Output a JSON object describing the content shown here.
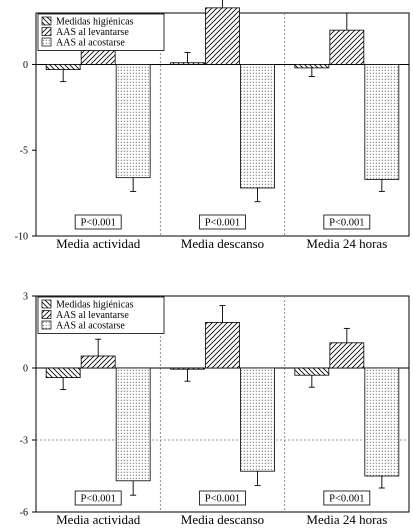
{
  "chart_data": [
    {
      "type": "bar",
      "title": "",
      "xlabel": "",
      "ylabel": "",
      "ylim": [
        -10,
        3
      ],
      "yticks": [
        -10,
        -5,
        0
      ],
      "grid": false,
      "legend_position": "top-left",
      "categories": [
        "Media actividad",
        "Media descanso",
        "Media 24 horas"
      ],
      "p_values": [
        "P<0.001",
        "P<0.001",
        "P<0.001"
      ],
      "series": [
        {
          "name": "Medidas higiénicas",
          "values": [
            -0.3,
            0.1,
            -0.2
          ],
          "error": [
            0.7,
            0.6,
            0.5
          ],
          "pattern": "hatch-back"
        },
        {
          "name": "AAS al levantarse",
          "values": [
            1.3,
            3.3,
            2.0
          ],
          "error": [
            0.9,
            1.1,
            1.0
          ],
          "pattern": "hatch-fwd"
        },
        {
          "name": "AAS al acostarse",
          "values": [
            -6.6,
            -7.2,
            -6.7
          ],
          "error": [
            0.8,
            0.8,
            0.7
          ],
          "pattern": "dots"
        }
      ]
    },
    {
      "type": "bar",
      "title": "",
      "xlabel": "",
      "ylabel": "",
      "ylim": [
        -6,
        3
      ],
      "yticks": [
        -6,
        -3,
        0,
        3
      ],
      "grid": false,
      "legend_position": "top-left",
      "categories": [
        "Media actividad",
        "Media descanso",
        "Media 24 horas"
      ],
      "p_values": [
        "P<0.001",
        "P<0.001",
        "P<0.001"
      ],
      "series": [
        {
          "name": "Medidas higiénicas",
          "values": [
            -0.4,
            -0.05,
            -0.3
          ],
          "error": [
            0.5,
            0.5,
            0.5
          ],
          "pattern": "hatch-back"
        },
        {
          "name": "AAS al levantarse",
          "values": [
            0.5,
            1.9,
            1.05
          ],
          "error": [
            0.7,
            0.7,
            0.6
          ],
          "pattern": "hatch-fwd"
        },
        {
          "name": "AAS al acostarse",
          "values": [
            -4.7,
            -4.3,
            -4.5
          ],
          "error": [
            0.6,
            0.6,
            0.5
          ],
          "pattern": "dots"
        }
      ]
    }
  ]
}
